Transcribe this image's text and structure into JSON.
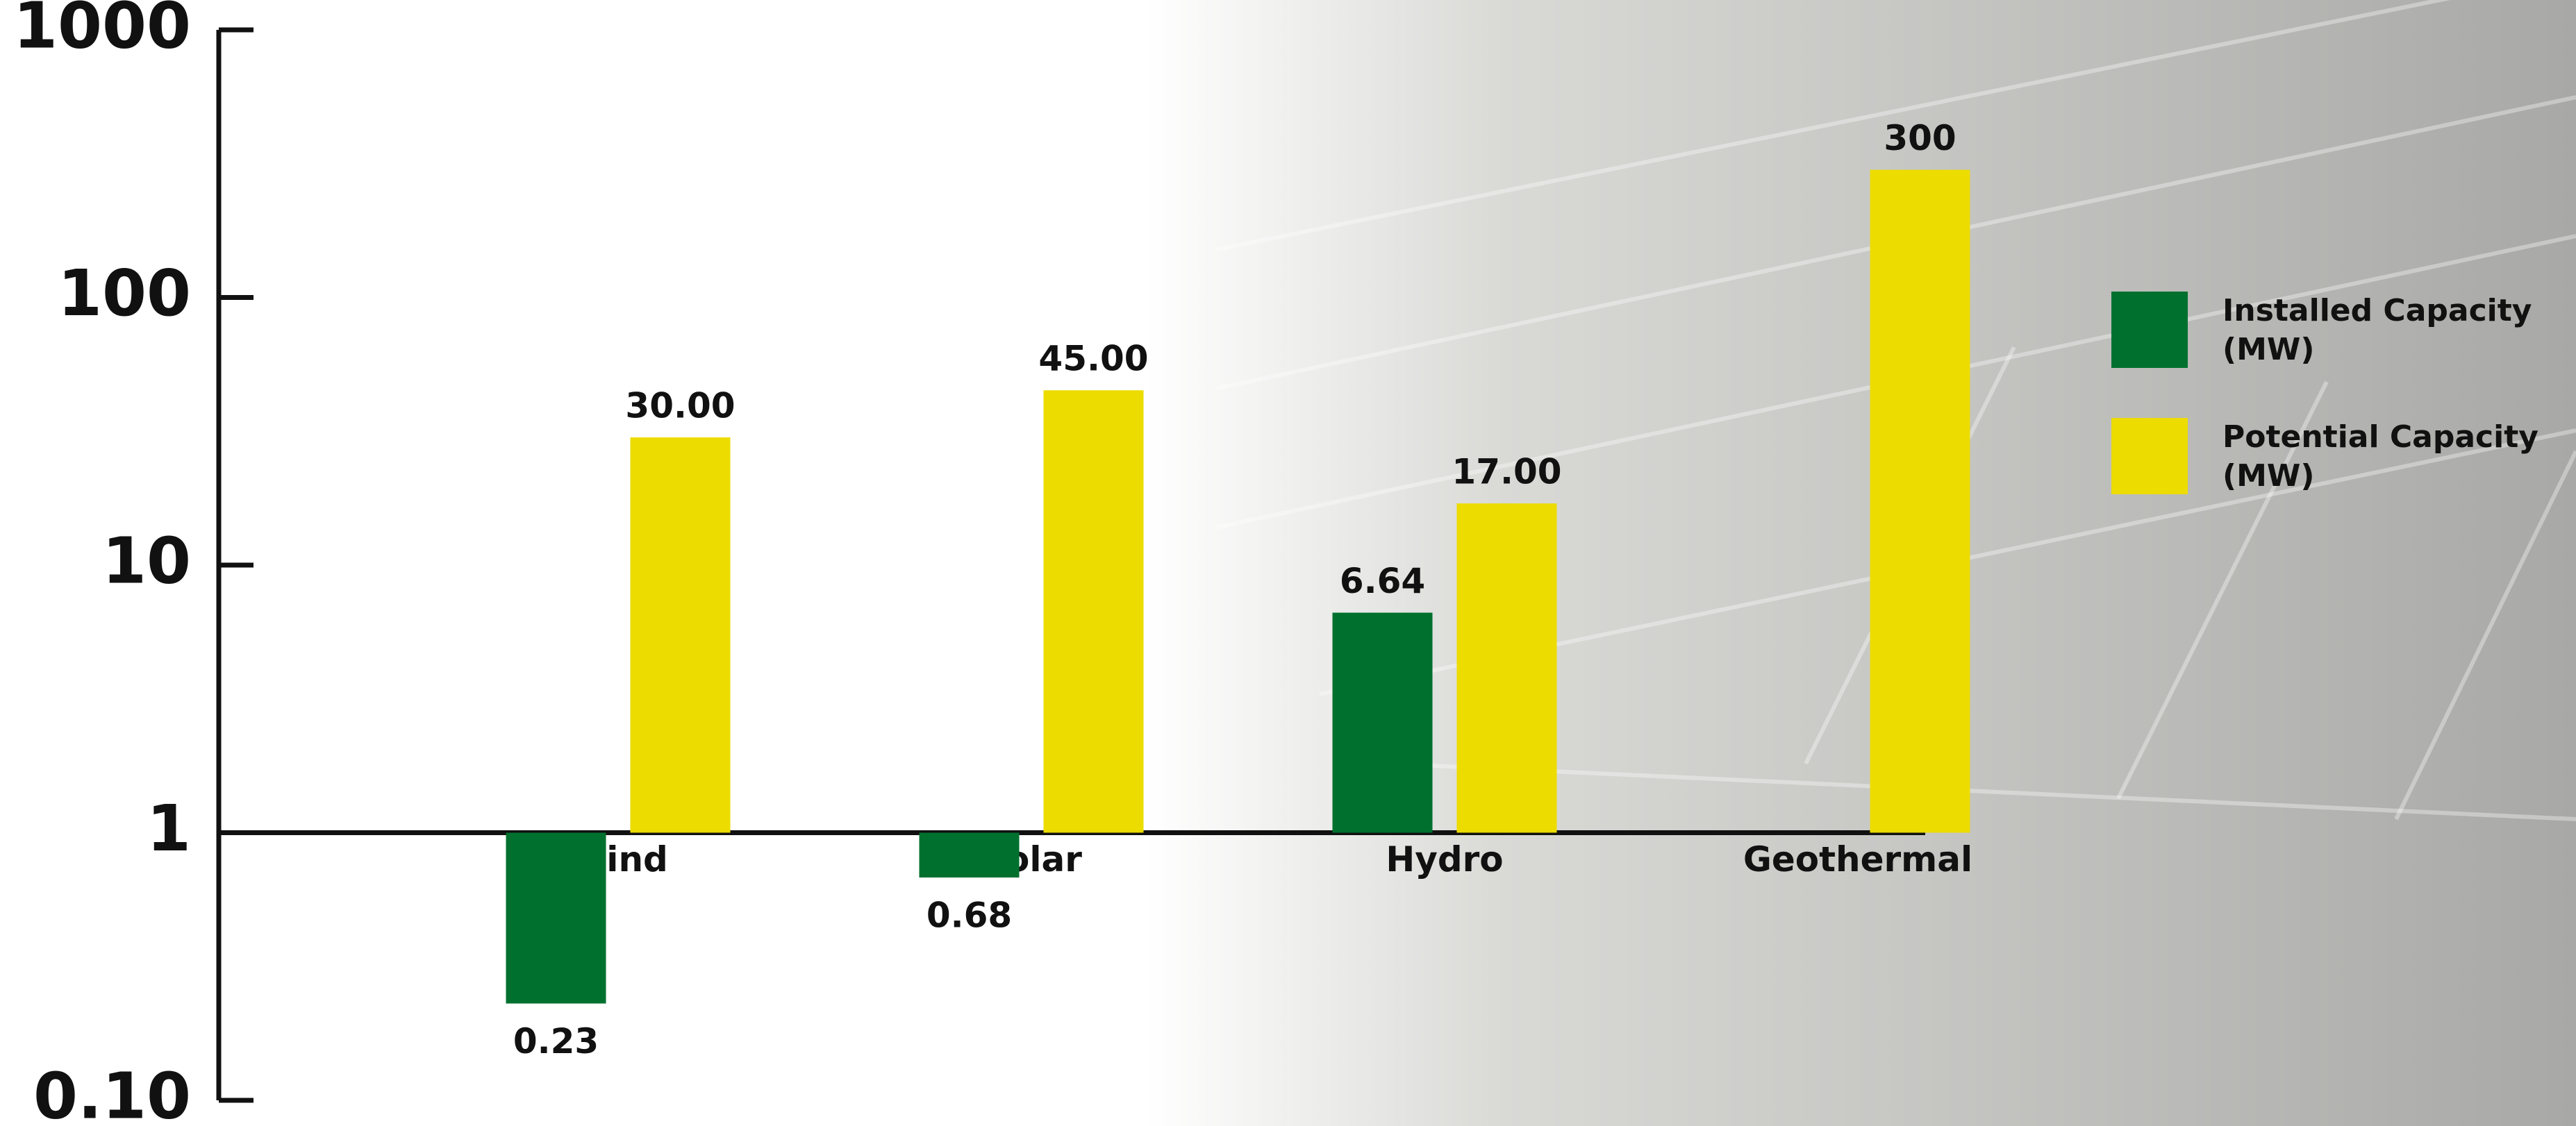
{
  "chart_data": {
    "type": "bar",
    "log_scale": true,
    "categories": [
      "Wind",
      "Solar",
      "Hydro",
      "Geothermal"
    ],
    "series": [
      {
        "name": "Installed Capacity (MW)",
        "color": "#00702e",
        "values": [
          0.23,
          0.68,
          6.64,
          null
        ]
      },
      {
        "name": "Potential Capacity (MW)",
        "color": "#ecdc00",
        "values": [
          30,
          45,
          17,
          300
        ],
        "value_labels": [
          "30.00",
          "45.00",
          "17.00",
          "300"
        ]
      }
    ],
    "ylim": [
      0.1,
      1000
    ],
    "yticks": [
      {
        "value": 0.1,
        "label": "0.10"
      },
      1,
      10,
      100,
      1000
    ],
    "legend": "right"
  }
}
